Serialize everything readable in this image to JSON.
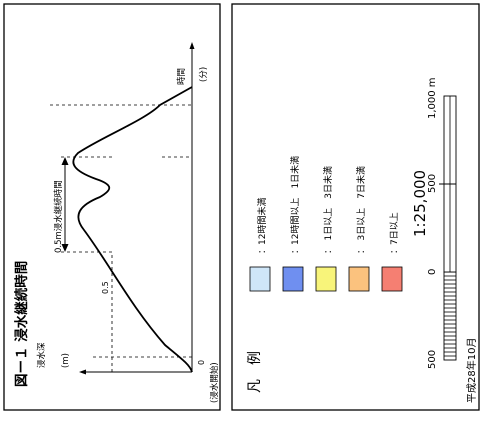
{
  "figure": {
    "title": "図ー１ 浸水継続時間",
    "y_axis_label_1": "浸水深",
    "y_axis_label_2": "(m)",
    "tick_zero": "0",
    "tick_half": "0.5",
    "x_axis_label_1": "時間",
    "x_axis_label_2": "(分)",
    "start_label": "(浸水開始)",
    "duration_label": "0.5m浸水継続時間"
  },
  "legend": {
    "title": "凡　例",
    "items": [
      {
        "label": "：12時間未満",
        "color": "#cfe6f8"
      },
      {
        "label": "：12時間以上　1日未満",
        "color": "#6f8ff0"
      },
      {
        "label": "：　1日以上　3日未満",
        "color": "#f8f47a"
      },
      {
        "label": "：　3日以上　7日未満",
        "color": "#fbc27e"
      },
      {
        "label": "：7日以上",
        "color": "#f57f72"
      }
    ]
  },
  "scale": {
    "ratio": "1:25,000",
    "labels": [
      "500",
      "0",
      "500",
      "1,000 m"
    ]
  },
  "footer": {
    "text": "平成28年10月"
  }
}
